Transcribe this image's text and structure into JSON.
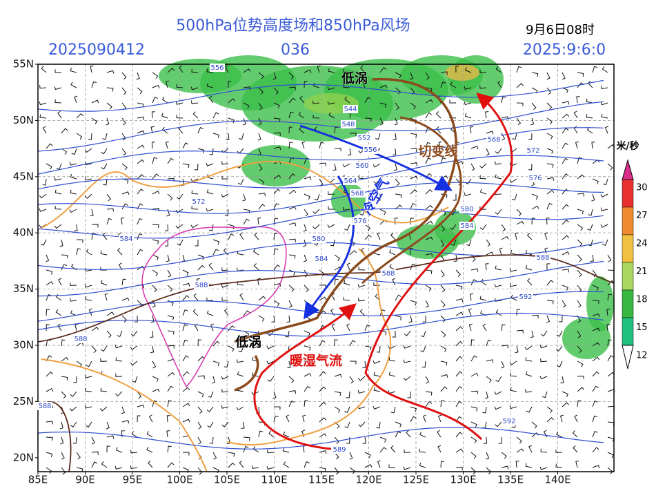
{
  "header": {
    "title": "500hPa位势高度场和850hPa风场",
    "valid_time": "9月6日08时",
    "init_time": "2025090412",
    "forecast_hour": "036",
    "date_code": "2025:9:6:0"
  },
  "axes": {
    "lat_labels": [
      "55N",
      "50N",
      "45N",
      "40N",
      "35N",
      "30N",
      "25N",
      "20N"
    ],
    "lon_labels": [
      "85E",
      "90E",
      "95E",
      "100E",
      "105E",
      "110E",
      "115E",
      "120E",
      "125E",
      "130E",
      "135E",
      "140E"
    ]
  },
  "contour_labels": [
    "556",
    "544",
    "548",
    "552",
    "556",
    "560",
    "564",
    "568",
    "572",
    "576",
    "580",
    "584",
    "584",
    "588",
    "588",
    "588",
    "588",
    "588",
    "592",
    "592",
    "589",
    "572",
    "576",
    "580",
    "584",
    "568"
  ],
  "annotations": [
    "低涡",
    "低涡",
    "切变线",
    "暖湿气流",
    "冷空气"
  ],
  "colorbar": {
    "unit": "米/秒",
    "labels": [
      "30",
      "27",
      "24",
      "21",
      "18",
      "15",
      "12"
    ]
  }
}
